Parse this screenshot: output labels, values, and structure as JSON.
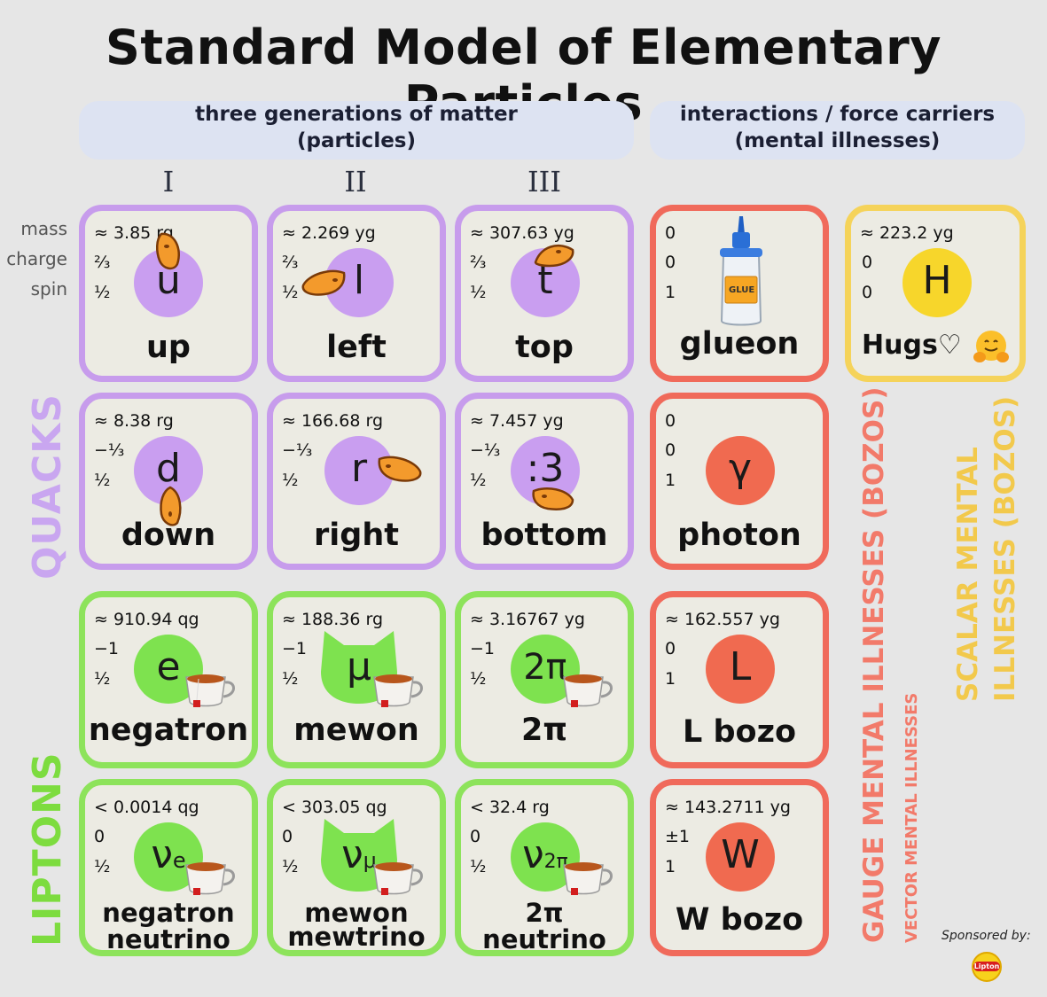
{
  "title": "Standard Model of Elementary Particles",
  "headers": {
    "matter_line1": "three generations of matter",
    "matter_line2": "(particles)",
    "forces_line1": "interactions / force carriers",
    "forces_line2": "(mental illnesses)"
  },
  "generations": [
    "I",
    "II",
    "III"
  ],
  "row_labels": {
    "mass": "mass",
    "charge": "charge",
    "spin": "spin"
  },
  "side_labels": {
    "quacks": "QUACKS",
    "liptons": "LIPTONS",
    "gauge": "GAUGE MENTAL ILLNESSES (BOZOS)",
    "vector": "VECTOR MENTAL ILLNESSES",
    "scalar_line1": "SCALAR MENTAL",
    "scalar_line2": "ILLNESSES (BOZOS)"
  },
  "sponsor": {
    "label": "Sponsored by:",
    "logo_text": "Lipton"
  },
  "particles": {
    "up": {
      "mass": "≈ 3.85 rg",
      "charge": "⅔",
      "spin": "½",
      "symbol": "u",
      "name": "up"
    },
    "left": {
      "mass": "≈ 2.269 yg",
      "charge": "⅔",
      "spin": "½",
      "symbol": "l",
      "name": "left"
    },
    "top": {
      "mass": "≈ 307.63 yg",
      "charge": "⅔",
      "spin": "½",
      "symbol": "t",
      "name": "top"
    },
    "down": {
      "mass": "≈ 8.38 rg",
      "charge": "−⅓",
      "spin": "½",
      "symbol": "d",
      "name": "down"
    },
    "right": {
      "mass": "≈ 166.68 rg",
      "charge": "−⅓",
      "spin": "½",
      "symbol": "r",
      "name": "right"
    },
    "bottom": {
      "mass": "≈ 7.457 yg",
      "charge": "−⅓",
      "spin": "½",
      "symbol": ":3",
      "name": "bottom"
    },
    "negatron": {
      "mass": "≈ 910.94 qg",
      "charge": "−1",
      "spin": "½",
      "symbol": "e",
      "name": "negatron"
    },
    "mewon": {
      "mass": "≈ 188.36 rg",
      "charge": "−1",
      "spin": "½",
      "symbol": "μ",
      "name": "mewon"
    },
    "twopi": {
      "mass": "≈ 3.16767 yg",
      "charge": "−1",
      "spin": "½",
      "symbol": "2π",
      "name": "2π"
    },
    "nu_e": {
      "mass": "< 0.0014 qg",
      "charge": "0",
      "spin": "½",
      "symbol": "ν",
      "sub": "e",
      "name1": "negatron",
      "name2": "neutrino"
    },
    "nu_mu": {
      "mass": "< 303.05 qg",
      "charge": "0",
      "spin": "½",
      "symbol": "ν",
      "sub": "μ",
      "name1": "mewon",
      "name2": "mewtrino"
    },
    "nu_2pi": {
      "mass": "< 32.4 rg",
      "charge": "0",
      "spin": "½",
      "symbol": "ν",
      "sub": "2π",
      "name1": "2π",
      "name2": "neutrino"
    },
    "glueon": {
      "mass": "0",
      "charge": "0",
      "spin": "1",
      "name": "glueon",
      "bottle_label": "GLUE"
    },
    "photon": {
      "mass": "0",
      "charge": "0",
      "spin": "1",
      "symbol": "γ",
      "name": "photon"
    },
    "lbozo": {
      "mass": "≈ 162.557 yg",
      "charge": "0",
      "spin": "1",
      "symbol": "L",
      "name": "L bozo"
    },
    "wbozo": {
      "mass": "≈ 143.2711 yg",
      "charge": "±1",
      "spin": "1",
      "symbol": "W",
      "name": "W bozo"
    },
    "hugs": {
      "mass": "≈ 223.2 yg",
      "charge": "0",
      "spin": "0",
      "symbol": "H",
      "name": "Hugs♡"
    }
  },
  "colors": {
    "quark": "#c79cec",
    "lepton": "#8de35b",
    "gauge": "#f06a5b",
    "scalar": "#f5d35a",
    "quark_label": "#c9a6f0",
    "lepton_label": "#7ddc3f",
    "gauge_label": "#f27a6a",
    "scalar_label": "#f2c94c"
  }
}
